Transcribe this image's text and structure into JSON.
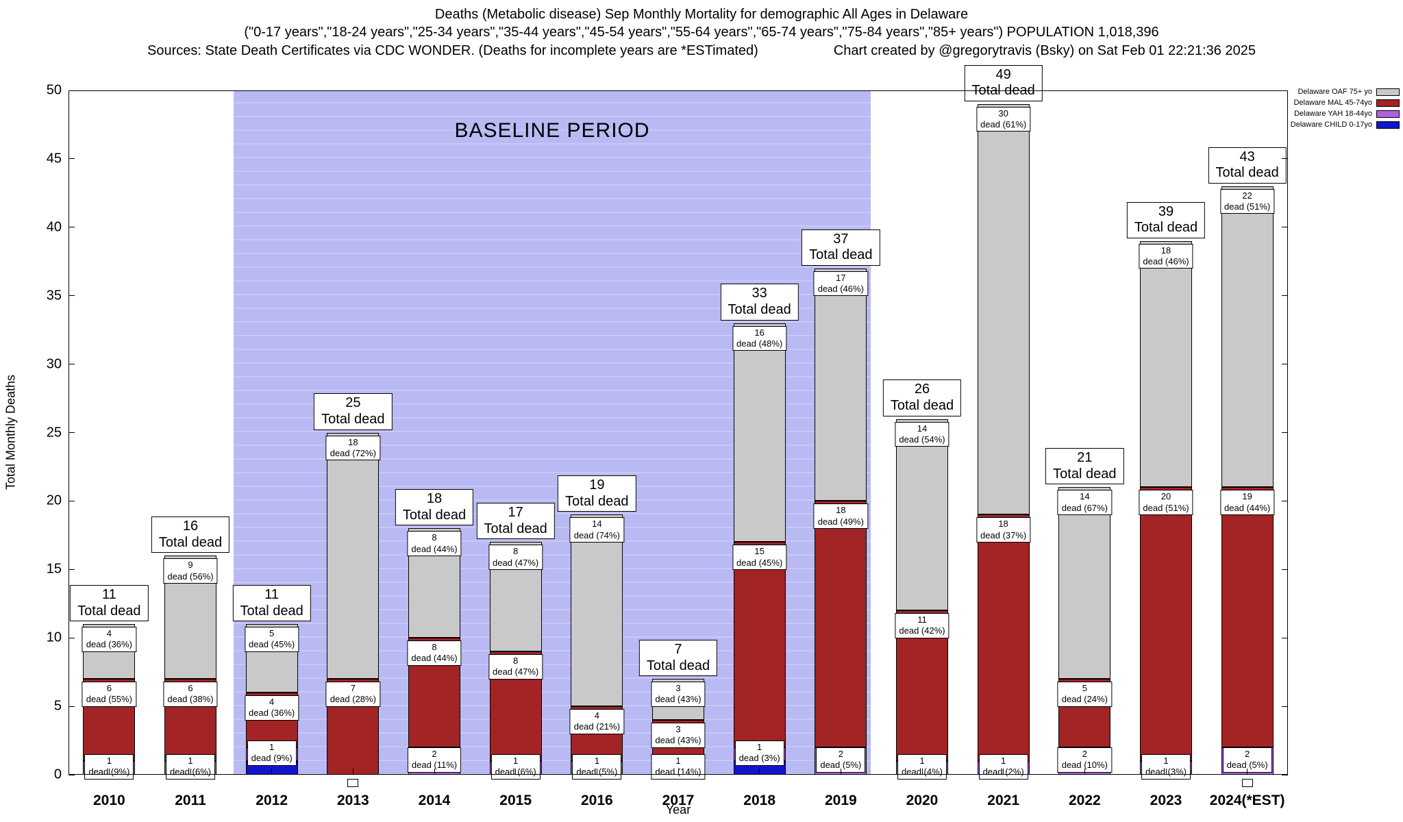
{
  "header": {
    "title_line1": "Deaths (Metabolic disease) Sep Monthly Mortality for demographic All Ages in Delaware",
    "title_line2": "(\"0-17 years\",\"18-24 years\",\"25-34 years\",\"35-44 years\",\"45-54 years\",\"55-64 years\",\"65-74 years\",\"75-84 years\",\"85+ years\") POPULATION 1,018,396",
    "title_line3_left": "Sources: State Death Certificates via CDC WONDER. (Deaths for incomplete years are *ESTimated)",
    "title_line3_right": "Chart created by @gregorytravis (Bsky) on Sat Feb 01 22:21:36 2025"
  },
  "chart_data": {
    "type": "bar",
    "stacked": true,
    "title": "Deaths (Metabolic disease) Sep Monthly Mortality for demographic All Ages in Delaware",
    "xlabel": "Year",
    "ylabel": "Total Monthly Deaths",
    "ylim": [
      0,
      50
    ],
    "ytick_step": 5,
    "grid": false,
    "legend_position": "top-right",
    "total_label_suffix": "Total dead",
    "segment_label_word": "dead",
    "baseline_period": {
      "label": "BASELINE PERIOD",
      "from_year": "2012",
      "to_year": "2019",
      "color": "#b9b9f3"
    },
    "legend": [
      {
        "key": "oaf",
        "label": "Delaware OAF 75+ yo",
        "color": "#c9c9c9"
      },
      {
        "key": "mal",
        "label": "Delaware MAL 45-74yo",
        "color": "#a22424"
      },
      {
        "key": "yah",
        "label": "Delaware YAH 18-44yo",
        "color": "#ad63dd"
      },
      {
        "key": "child",
        "label": "Delaware CHILD 0-17yo",
        "color": "#1414cc"
      }
    ],
    "years": [
      {
        "year": "2010",
        "total": 11,
        "segments": [
          {
            "key": "yah",
            "value": 1,
            "pct": "9%"
          },
          {
            "key": "mal",
            "value": 6,
            "pct": "55%"
          },
          {
            "key": "oaf",
            "value": 4,
            "pct": "36%"
          }
        ]
      },
      {
        "year": "2011",
        "total": 16,
        "segments": [
          {
            "key": "yah",
            "value": 1,
            "pct": "6%"
          },
          {
            "key": "mal",
            "value": 6,
            "pct": "38%"
          },
          {
            "key": "oaf",
            "value": 9,
            "pct": "56%"
          }
        ]
      },
      {
        "year": "2012",
        "total": 11,
        "segments": [
          {
            "key": "child",
            "value": 1,
            "pct": "9%",
            "label_hidden": true
          },
          {
            "key": "yah",
            "value": 1,
            "pct": "9%"
          },
          {
            "key": "mal",
            "value": 4,
            "pct": "36%"
          },
          {
            "key": "oaf",
            "value": 5,
            "pct": "45%"
          }
        ]
      },
      {
        "year": "2013",
        "total": 25,
        "zero_marker": true,
        "segments": [
          {
            "key": "mal",
            "value": 7,
            "pct": "28%"
          },
          {
            "key": "oaf",
            "value": 18,
            "pct": "72%"
          }
        ]
      },
      {
        "year": "2014",
        "total": 18,
        "segments": [
          {
            "key": "yah",
            "value": 2,
            "pct": "11%"
          },
          {
            "key": "mal",
            "value": 8,
            "pct": "44%"
          },
          {
            "key": "oaf",
            "value": 8,
            "pct": "44%"
          }
        ]
      },
      {
        "year": "2015",
        "total": 17,
        "segments": [
          {
            "key": "yah",
            "value": 1,
            "pct": "6%"
          },
          {
            "key": "mal",
            "value": 8,
            "pct": "47%"
          },
          {
            "key": "oaf",
            "value": 8,
            "pct": "47%"
          }
        ]
      },
      {
        "year": "2016",
        "total": 19,
        "segments": [
          {
            "key": "yah",
            "value": 1,
            "pct": "5%"
          },
          {
            "key": "mal",
            "value": 4,
            "pct": "21%"
          },
          {
            "key": "oaf",
            "value": 14,
            "pct": "74%"
          }
        ]
      },
      {
        "year": "2017",
        "total": 7,
        "segments": [
          {
            "key": "yah",
            "value": 1,
            "pct": "14%"
          },
          {
            "key": "mal",
            "value": 3,
            "pct": "43%"
          },
          {
            "key": "oaf",
            "value": 3,
            "pct": "43%"
          }
        ]
      },
      {
        "year": "2018",
        "total": 33,
        "segments": [
          {
            "key": "child",
            "value": 1,
            "pct": "3%",
            "label_hidden": true
          },
          {
            "key": "yah",
            "value": 1,
            "pct": "3%"
          },
          {
            "key": "mal",
            "value": 15,
            "pct": "45%"
          },
          {
            "key": "oaf",
            "value": 16,
            "pct": "48%"
          }
        ]
      },
      {
        "year": "2019",
        "total": 37,
        "segments": [
          {
            "key": "yah",
            "value": 2,
            "pct": "5%"
          },
          {
            "key": "mal",
            "value": 18,
            "pct": "49%"
          },
          {
            "key": "oaf",
            "value": 17,
            "pct": "46%"
          }
        ]
      },
      {
        "year": "2020",
        "total": 26,
        "segments": [
          {
            "key": "yah",
            "value": 1,
            "pct": "4%"
          },
          {
            "key": "mal",
            "value": 11,
            "pct": "42%"
          },
          {
            "key": "oaf",
            "value": 14,
            "pct": "54%"
          }
        ]
      },
      {
        "year": "2021",
        "total": 49,
        "segments": [
          {
            "key": "yah",
            "value": 1,
            "pct": "2%"
          },
          {
            "key": "mal",
            "value": 18,
            "pct": "37%"
          },
          {
            "key": "oaf",
            "value": 30,
            "pct": "61%"
          }
        ]
      },
      {
        "year": "2022",
        "total": 21,
        "segments": [
          {
            "key": "yah",
            "value": 2,
            "pct": "10%"
          },
          {
            "key": "mal",
            "value": 5,
            "pct": "24%"
          },
          {
            "key": "oaf",
            "value": 14,
            "pct": "67%"
          }
        ]
      },
      {
        "year": "2023",
        "total": 39,
        "segments": [
          {
            "key": "yah",
            "value": 1,
            "pct": "3%"
          },
          {
            "key": "mal",
            "value": 20,
            "pct": "51%"
          },
          {
            "key": "oaf",
            "value": 18,
            "pct": "46%"
          }
        ]
      },
      {
        "year": "2024(*EST)",
        "total": 43,
        "zero_marker": true,
        "segments": [
          {
            "key": "yah",
            "value": 2,
            "pct": "5%"
          },
          {
            "key": "mal",
            "value": 19,
            "pct": "44%"
          },
          {
            "key": "oaf",
            "value": 22,
            "pct": "51%"
          }
        ]
      }
    ]
  }
}
